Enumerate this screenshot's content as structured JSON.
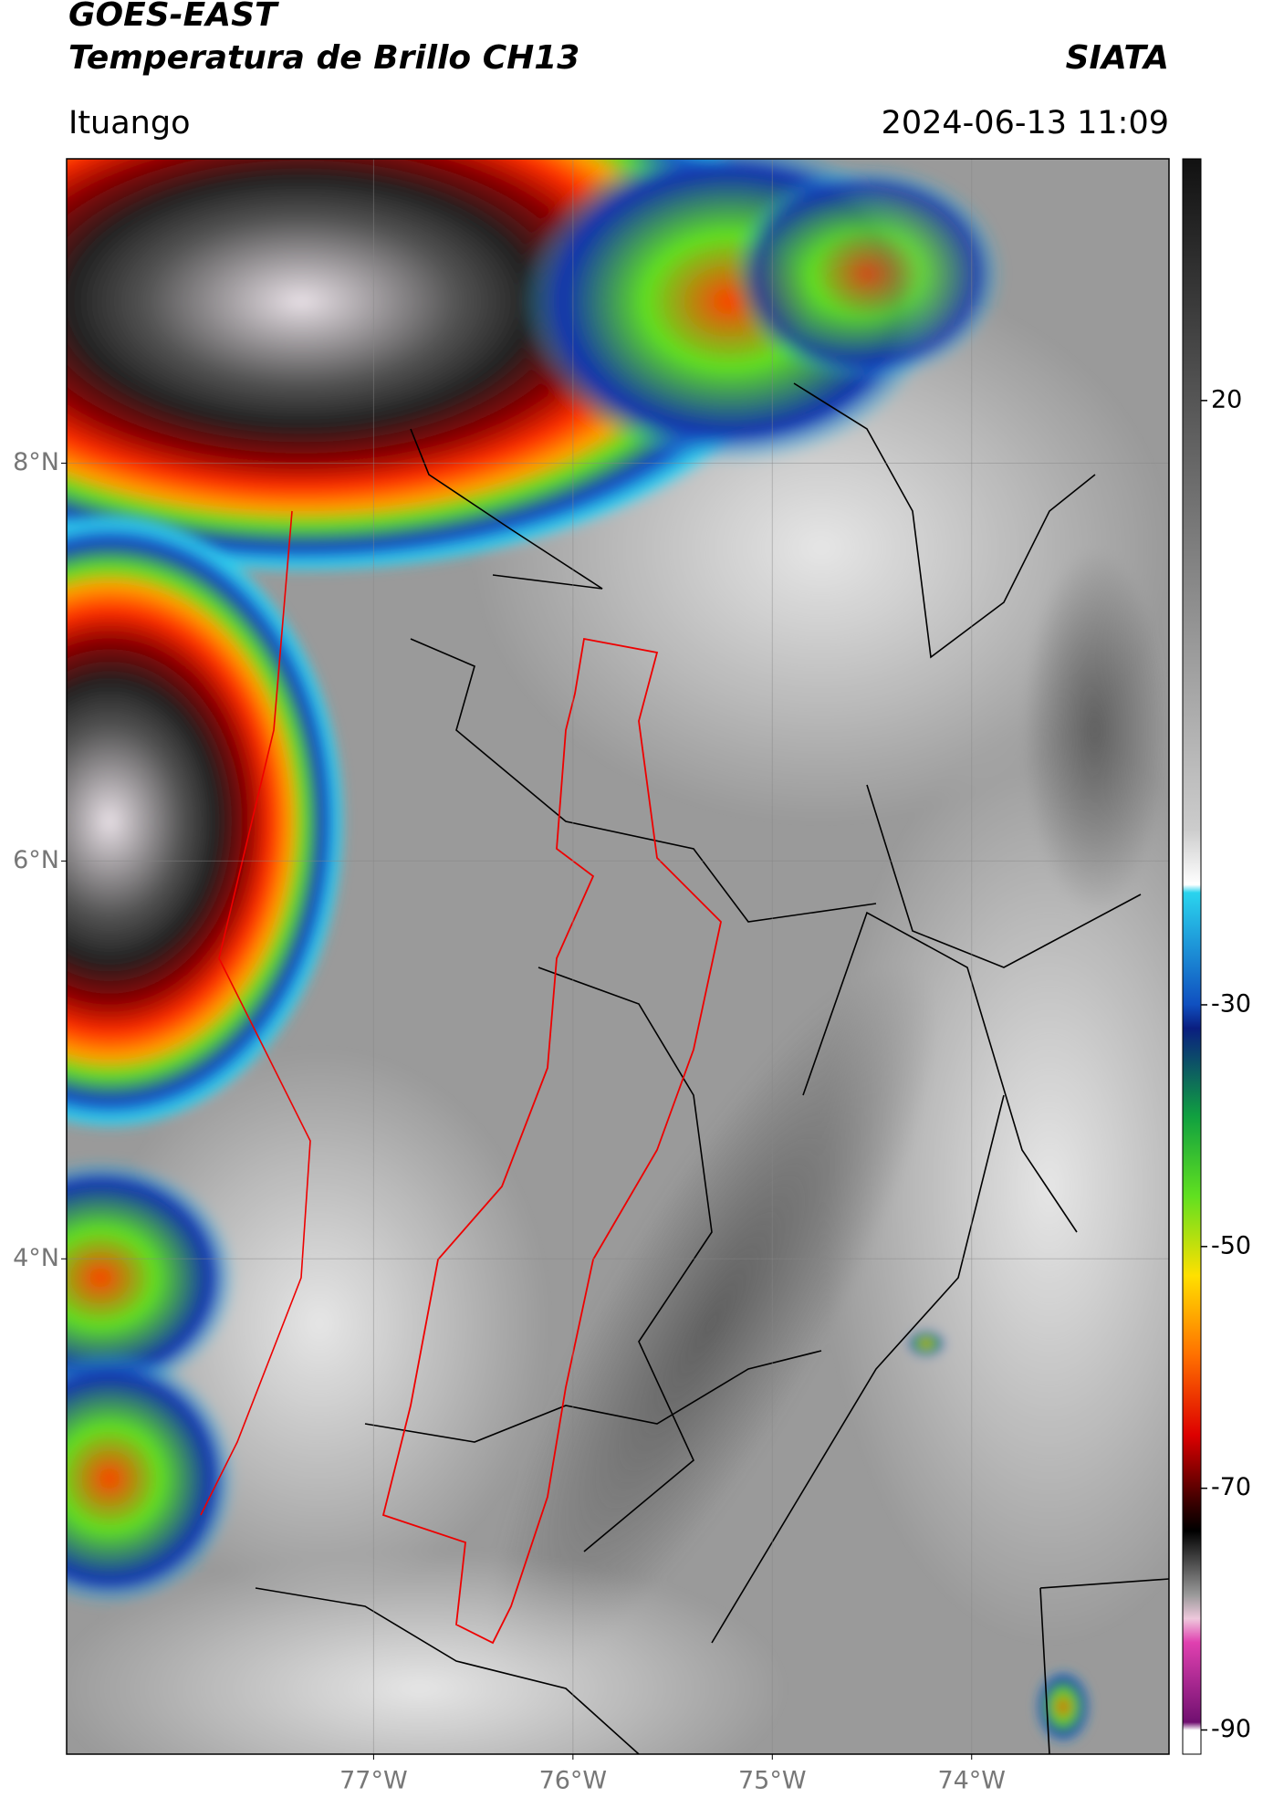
{
  "header": {
    "title": "GOES-EAST",
    "subtitle": "Temperatura de Brillo CH13",
    "source": "SIATA",
    "location": "Ituango",
    "datetime": "2024-06-13 11:09"
  },
  "map": {
    "lonlim": [
      -78.54,
      -73.01
    ],
    "latlim": [
      1.51,
      9.53
    ],
    "lat_ticks": [
      {
        "value": 8,
        "label": "8°N"
      },
      {
        "value": 6,
        "label": "6°N"
      },
      {
        "value": 4,
        "label": "4°N"
      }
    ],
    "lon_ticks": [
      {
        "value": -77,
        "label": "77°W"
      },
      {
        "value": -76,
        "label": "76°W"
      },
      {
        "value": -75,
        "label": "75°W"
      },
      {
        "value": -74,
        "label": "74°W"
      }
    ],
    "grid": true
  },
  "colorbar": {
    "lim": [
      -92,
      40
    ],
    "ticks": [
      20,
      -30,
      -50,
      -70,
      -90
    ]
  }
}
